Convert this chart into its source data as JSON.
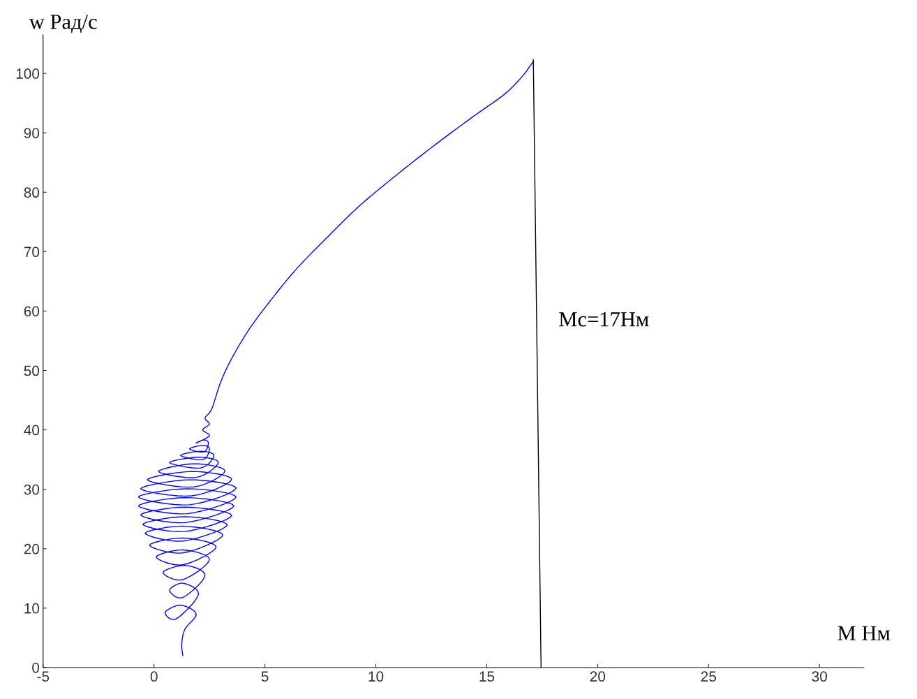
{
  "chart_data": {
    "type": "line",
    "xlabel": "М Нм",
    "ylabel": "w Рад/с",
    "xlim": [
      -5,
      32
    ],
    "xticks": [
      -5,
      0,
      5,
      10,
      15,
      20,
      25,
      30
    ],
    "ylim": [
      0,
      110
    ],
    "yticks": [
      0,
      10,
      20,
      30,
      40,
      50,
      60,
      70,
      80,
      90,
      100
    ],
    "grid": false,
    "legend": false,
    "annotations": [
      "Мс=17Нм"
    ],
    "series": [
      {
        "color": "#0000ff",
        "x": [
          1.3,
          1.25,
          1.4,
          1.9,
          1.2,
          0.5,
          1.0,
          2.0,
          1.3,
          0.7,
          1.3,
          2.3,
          1.4,
          0.4,
          1.3,
          2.5,
          1.3,
          0.1,
          1.3,
          2.8,
          1.3,
          -0.2,
          1.3,
          3.1,
          1.3,
          -0.4,
          1.3,
          3.3,
          1.4,
          -0.5,
          1.4,
          3.5,
          1.4,
          -0.6,
          1.4,
          3.6,
          1.4,
          -0.7,
          1.5,
          3.7,
          1.5,
          -0.7,
          1.6,
          3.7,
          1.6,
          -0.6,
          1.7,
          3.5,
          1.7,
          -0.3,
          1.8,
          3.2,
          1.8,
          0.2,
          1.9,
          2.9,
          2.0,
          0.7,
          2.1,
          2.7,
          2.1,
          1.2,
          2.2,
          2.5,
          2.2,
          1.6,
          2.25,
          2.45,
          2.25,
          1.9,
          2.5,
          2.2,
          2.5,
          2.3,
          2.6,
          3.0,
          3.5,
          4.3,
          5.3,
          6.4,
          7.7,
          9.2,
          10.8,
          12.5,
          14.3,
          15.8,
          16.6,
          17.0,
          17.1
        ],
        "values": [
          2,
          4,
          6.5,
          9.0,
          10.5,
          9.3,
          8.2,
          12.3,
          14.2,
          13.0,
          11.8,
          15.5,
          17.2,
          16.0,
          14.8,
          18.2,
          19.8,
          18.6,
          17.3,
          20.3,
          21.8,
          20.6,
          19.3,
          22.3,
          23.8,
          22.6,
          21.3,
          24.0,
          25.4,
          24.1,
          22.9,
          25.6,
          27.0,
          25.7,
          24.4,
          27.2,
          28.6,
          27.2,
          25.9,
          28.7,
          30.1,
          28.7,
          27.4,
          30.2,
          31.6,
          30.1,
          28.9,
          31.7,
          33.0,
          31.6,
          30.4,
          33.1,
          34.3,
          33.0,
          32.0,
          34.5,
          35.4,
          34.5,
          33.6,
          35.7,
          36.4,
          35.7,
          35.0,
          36.8,
          37.4,
          36.8,
          36.3,
          37.8,
          38.3,
          37.8,
          39,
          40,
          41,
          42,
          43.5,
          48,
          52,
          57,
          62,
          67,
          72,
          77.5,
          82.5,
          87.5,
          92.5,
          96.5,
          99.5,
          101.5,
          102
        ]
      },
      {
        "color": "#000000",
        "x": [
          17.1,
          17.45
        ],
        "values": [
          102.3,
          0
        ]
      }
    ]
  }
}
